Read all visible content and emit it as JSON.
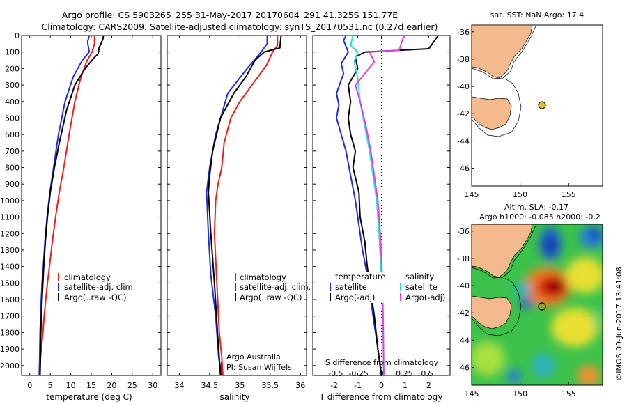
{
  "header": {
    "line1": "Argo profile: CS 5903265_255 31-May-2017 20170604_291 41.325S 151.77E",
    "line2": "Climatology: CARS2009. Satellite-adjusted climatology: synTS_20170531.nc (0.27d earlier)"
  },
  "colors": {
    "climatology": "#e8201c",
    "satellite": "#1f2fd8",
    "argo": "#000000",
    "sat_salinity": "#22e0e0",
    "argo_salinity": "#e040e0",
    "land": "#f5b98e",
    "argo_dot": "#e8c020"
  },
  "chart_data": [
    {
      "type": "line",
      "xlabel": "temperature (deg C)",
      "xlim": [
        -2,
        32
      ],
      "xticks": [
        0,
        5,
        10,
        15,
        20,
        25,
        30
      ],
      "ylim": [
        2060,
        0
      ],
      "yticks": [
        0,
        100,
        200,
        300,
        400,
        500,
        600,
        700,
        800,
        900,
        1000,
        1100,
        1200,
        1300,
        1400,
        1500,
        1600,
        1700,
        1800,
        1900,
        2000
      ],
      "legend": [
        "climatology",
        "satellite-adj. clim.",
        "Argo(..raw -QC)"
      ],
      "series": [
        {
          "name": "climatology",
          "color": "red",
          "x": [
            15.8,
            15.8,
            15.2,
            14,
            12.5,
            11,
            9.6,
            8.3,
            7.2,
            6.3,
            5.5,
            4.8,
            4.3,
            3.9,
            3.5,
            3.2,
            3,
            2.8,
            2.6,
            2.5,
            2.3
          ],
          "y": [
            0,
            50,
            100,
            150,
            250,
            400,
            600,
            800,
            950,
            1100,
            1250,
            1400,
            1500,
            1600,
            1700,
            1800,
            1850,
            1900,
            1950,
            2000,
            2060
          ]
        },
        {
          "name": "satellite-adj. clim.",
          "color": "blue",
          "x": [
            14.5,
            14.1,
            14.5,
            12.8,
            10.6,
            8.6,
            7,
            5.8,
            4.9,
            4.2,
            3.7,
            3.3,
            3,
            2.8,
            2.5,
            2.4,
            2.3
          ],
          "y": [
            0,
            40,
            100,
            150,
            250,
            400,
            600,
            800,
            950,
            1100,
            1250,
            1400,
            1500,
            1600,
            1800,
            1950,
            2060
          ]
        },
        {
          "name": "Argo(..raw -QC)",
          "color": "black",
          "x": [
            18,
            17.8,
            16.9,
            16.7,
            15.5,
            13.5,
            11,
            9,
            7.2,
            6,
            5,
            4.3,
            3.8,
            3.4,
            3.2,
            2.9,
            2.7,
            2.6,
            2.5
          ],
          "y": [
            0,
            25,
            75,
            110,
            140,
            200,
            300,
            450,
            650,
            800,
            950,
            1100,
            1250,
            1400,
            1500,
            1650,
            1800,
            1950,
            2060
          ]
        }
      ]
    },
    {
      "type": "line",
      "xlabel": "salinity",
      "xlim": [
        33.8,
        36.1
      ],
      "xticks": [
        34,
        34.5,
        35,
        35.5,
        36
      ],
      "ylim": [
        2060,
        0
      ],
      "legend": [
        "climatology",
        "satellite-adj. clim.",
        "Argo(..raw -QC)"
      ],
      "series": [
        {
          "name": "climatology",
          "color": "red",
          "x": [
            35.62,
            35.62,
            35.54,
            35.44,
            35.2,
            35,
            34.85,
            34.74,
            34.7,
            34.64,
            34.6,
            34.58,
            34.62,
            34.66,
            34.7,
            34.72
          ],
          "y": [
            0,
            60,
            100,
            180,
            300,
            400,
            500,
            650,
            800,
            900,
            1000,
            1200,
            1500,
            1800,
            1950,
            2060
          ]
        },
        {
          "name": "satellite-adj. clim.",
          "color": "blue",
          "x": [
            35.45,
            35.45,
            35.35,
            35.12,
            34.8,
            34.6,
            34.5,
            34.45,
            34.48,
            34.52,
            34.6,
            34.65,
            34.7
          ],
          "y": [
            0,
            50,
            100,
            200,
            350,
            600,
            800,
            950,
            1200,
            1450,
            1700,
            1950,
            2060
          ]
        },
        {
          "name": "Argo(..raw -QC)",
          "color": "black",
          "x": [
            35.68,
            35.66,
            35.4,
            35.25,
            35.1,
            34.9,
            34.68,
            34.55,
            34.5,
            34.48,
            34.52,
            34.58,
            34.63,
            34.68
          ],
          "y": [
            0,
            75,
            100,
            150,
            250,
            350,
            500,
            700,
            850,
            950,
            1200,
            1500,
            1800,
            2060
          ]
        }
      ]
    },
    {
      "type": "line",
      "xlabel": "T difference from climatology",
      "xlabel2": "S difference from climatology",
      "xlim": [
        -2.9,
        2.9
      ],
      "xticks": [
        -2,
        -1,
        0,
        1,
        2
      ],
      "xticks2": [
        "-0.5",
        "-0.25",
        "0",
        "0.25",
        "0.5"
      ],
      "ylim": [
        2060,
        0
      ],
      "legend": {
        "temperature": "temperature",
        "salinity": "salinity",
        "entries": [
          "satellite",
          "Argo(-adj)",
          "satellite",
          "Argo(-adj)"
        ]
      },
      "series": [
        {
          "name": "T satellite",
          "color": "blue",
          "x": [
            -1.5,
            -1.6,
            -1.4,
            -1.7,
            -1.6,
            -1.9,
            -1.8,
            -1.9,
            -1.7,
            -1.5,
            -1.3,
            -1.1,
            -0.95,
            -0.8,
            -0.6,
            -0.45,
            -0.3,
            -0.15,
            -0.05,
            0
          ],
          "y": [
            0,
            30,
            100,
            170,
            230,
            350,
            420,
            500,
            600,
            700,
            850,
            1000,
            1150,
            1300,
            1450,
            1600,
            1750,
            1900,
            2000,
            2060
          ]
        },
        {
          "name": "T Argo(-adj)",
          "color": "black",
          "x": [
            2.4,
            2.3,
            2.0,
            -0.7,
            -1.1,
            -1.0,
            -1.4,
            -1.3,
            -1.4,
            -1.3,
            -1.1,
            -1.2,
            -0.95,
            -0.9,
            -0.7,
            -0.6,
            -0.45,
            -0.3,
            -0.15,
            0
          ],
          "y": [
            0,
            20,
            80,
            100,
            130,
            200,
            300,
            400,
            500,
            600,
            700,
            800,
            950,
            1100,
            1250,
            1400,
            1550,
            1700,
            1900,
            2060
          ]
        },
        {
          "name": "S satellite",
          "color": "cyan",
          "x": [
            -1.2,
            -1.3,
            -1.0,
            -1.15,
            -1.0,
            -0.9,
            -0.7,
            -0.5,
            -0.35,
            -0.2,
            -0.1,
            0,
            0.08,
            0.1
          ],
          "y": [
            0,
            60,
            100,
            160,
            260,
            400,
            550,
            700,
            850,
            1000,
            1200,
            1450,
            1750,
            2060
          ]
        },
        {
          "name": "S Argo(-adj)",
          "color": "magenta",
          "x": [
            1.0,
            0.9,
            0.75,
            -0.5,
            -0.3,
            -1.1,
            -0.9,
            -0.65,
            -0.45,
            -0.3,
            -0.15,
            -0.05,
            0.05,
            0.1
          ],
          "y": [
            0,
            20,
            90,
            100,
            160,
            300,
            400,
            550,
            700,
            850,
            1000,
            1200,
            1500,
            2060
          ]
        }
      ]
    }
  ],
  "maps": {
    "top": {
      "title": "sat. SST: NaN Argo: 17.4",
      "xticks": [
        "145",
        "150",
        "155"
      ],
      "yticks": [
        "-36",
        "-38",
        "-40",
        "-42",
        "-44",
        "-46"
      ]
    },
    "bottom": {
      "title1": "Altim. SLA: -0.17",
      "title2": "Argo h1000: -0.085 h2000: -0.2",
      "xticks": [
        "145",
        "150",
        "155"
      ],
      "yticks": [
        "-36",
        "-38",
        "-40",
        "-42",
        "-44",
        "-46"
      ]
    }
  },
  "footer": {
    "argo_australia": "Argo Australia",
    "pi": "PI: Susan Wijffels",
    "stamp": "©IMOS 09-Jun-2017 13:41:08"
  }
}
